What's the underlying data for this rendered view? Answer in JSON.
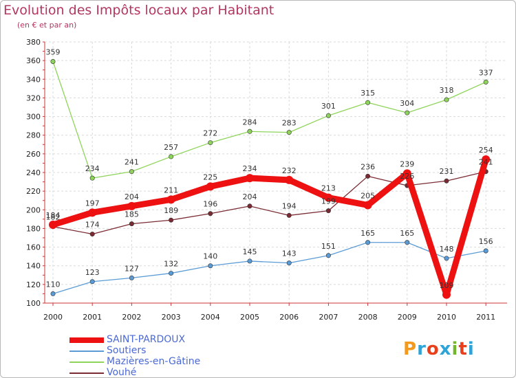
{
  "header": {
    "title": "Evolution des Impôts locaux par Habitant",
    "subtitle": "(en € et par an)"
  },
  "logo": {
    "text": "Proxiti",
    "colors": [
      "#f39a1e",
      "#2ea4d6",
      "#e8401c",
      "#2ea4d6",
      "#73b62c",
      "#e8401c",
      "#2ea4d6"
    ]
  },
  "chart_data": {
    "type": "line",
    "title": "Evolution des Impôts locaux par Habitant",
    "subtitle": "(en € et par an)",
    "xlabel": "",
    "ylabel": "",
    "x": [
      "2000",
      "2001",
      "2002",
      "2003",
      "2004",
      "2005",
      "2006",
      "2007",
      "2008",
      "2009",
      "2010",
      "2011"
    ],
    "ylim": [
      100,
      380
    ],
    "yticks": [
      "100",
      "120",
      "140",
      "160",
      "180",
      "200",
      "220",
      "240",
      "260",
      "280",
      "300",
      "320",
      "340",
      "360",
      "380"
    ],
    "grid": true,
    "legend_position": "bottom-left",
    "series": [
      {
        "name": "Soutiers",
        "color": "#5b9bd5",
        "thick": false,
        "values": [
          110,
          123,
          127,
          132,
          140,
          145,
          143,
          151,
          165,
          165,
          148,
          156
        ],
        "labels": [
          "110",
          "123",
          "127",
          "132",
          "140",
          "145",
          "143",
          "151",
          "165",
          "165",
          "148",
          "156"
        ]
      },
      {
        "name": "Mazières-en-Gâtine",
        "color": "#8ed45a",
        "thick": false,
        "values": [
          359,
          234,
          241,
          257,
          272,
          284,
          283,
          301,
          315,
          304,
          318,
          337
        ],
        "labels": [
          "359",
          "234",
          "241",
          "257",
          "272",
          "284",
          "283",
          "301",
          "315",
          "304",
          "318",
          "337"
        ]
      },
      {
        "name": "Vouhé",
        "color": "#7a2a32",
        "thick": false,
        "values": [
          182,
          174,
          185,
          189,
          196,
          204,
          194,
          199,
          236,
          226,
          231,
          241
        ],
        "labels": [
          "182",
          "174",
          "185",
          "189",
          "196",
          "204",
          "194",
          "199",
          "236",
          "226",
          "231",
          "241"
        ]
      },
      {
        "name": "SAINT-PARDOUX",
        "color": "#ee1111",
        "thick": true,
        "values": [
          184,
          197,
          204,
          211,
          225,
          234,
          232,
          213,
          205,
          239,
          109,
          254
        ],
        "labels": [
          "184",
          "197",
          "204",
          "211",
          "225",
          "234",
          "232",
          "213",
          "205",
          "239",
          "109",
          "254"
        ]
      }
    ],
    "legend": [
      "SAINT-PARDOUX",
      "Soutiers",
      "Mazières-en-Gâtine",
      "Vouhé"
    ]
  }
}
